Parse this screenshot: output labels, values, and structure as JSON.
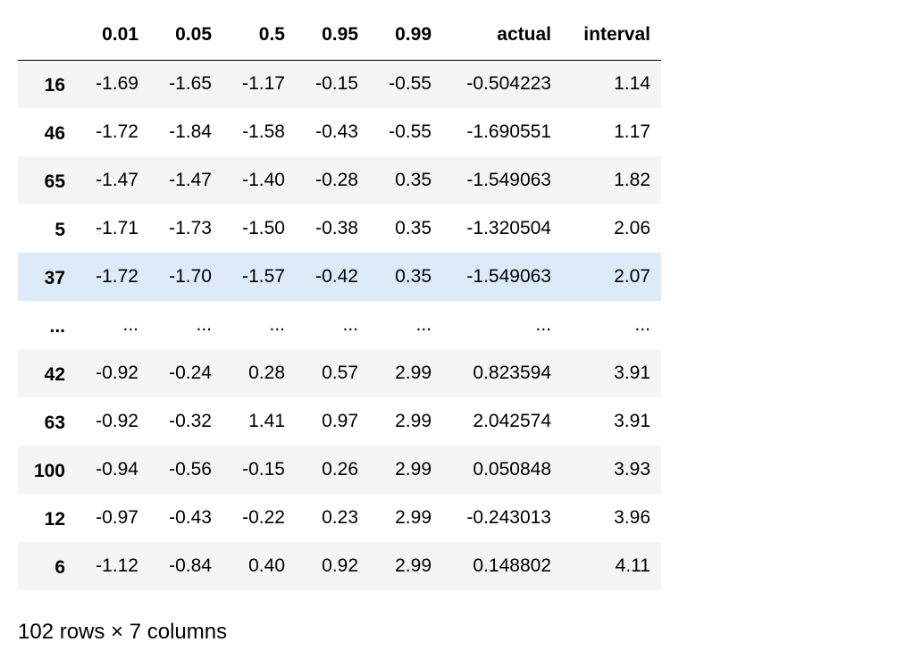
{
  "table": {
    "columns": [
      "0.01",
      "0.05",
      "0.5",
      "0.95",
      "0.99",
      "actual",
      "interval"
    ],
    "rows": [
      {
        "index": "16",
        "cells": [
          "-1.69",
          "-1.65",
          "-1.17",
          "-0.15",
          "-0.55",
          "-0.504223",
          "1.14"
        ]
      },
      {
        "index": "46",
        "cells": [
          "-1.72",
          "-1.84",
          "-1.58",
          "-0.43",
          "-0.55",
          "-1.690551",
          "1.17"
        ]
      },
      {
        "index": "65",
        "cells": [
          "-1.47",
          "-1.47",
          "-1.40",
          "-0.28",
          "0.35",
          "-1.549063",
          "1.82"
        ]
      },
      {
        "index": "5",
        "cells": [
          "-1.71",
          "-1.73",
          "-1.50",
          "-0.38",
          "0.35",
          "-1.320504",
          "2.06"
        ]
      },
      {
        "index": "37",
        "cells": [
          "-1.72",
          "-1.70",
          "-1.57",
          "-0.42",
          "0.35",
          "-1.549063",
          "2.07"
        ]
      },
      {
        "index": "...",
        "cells": [
          "...",
          "...",
          "...",
          "...",
          "...",
          "...",
          "..."
        ]
      },
      {
        "index": "42",
        "cells": [
          "-0.92",
          "-0.24",
          "0.28",
          "0.57",
          "2.99",
          "0.823594",
          "3.91"
        ]
      },
      {
        "index": "63",
        "cells": [
          "-0.92",
          "-0.32",
          "1.41",
          "0.97",
          "2.99",
          "2.042574",
          "3.91"
        ]
      },
      {
        "index": "100",
        "cells": [
          "-0.94",
          "-0.56",
          "-0.15",
          "0.26",
          "2.99",
          "0.050848",
          "3.93"
        ]
      },
      {
        "index": "12",
        "cells": [
          "-0.97",
          "-0.43",
          "-0.22",
          "0.23",
          "2.99",
          "-0.243013",
          "3.96"
        ]
      },
      {
        "index": "6",
        "cells": [
          "-1.12",
          "-0.84",
          "0.40",
          "0.92",
          "2.99",
          "0.148802",
          "4.11"
        ]
      }
    ]
  },
  "footer": "102 rows × 7 columns"
}
